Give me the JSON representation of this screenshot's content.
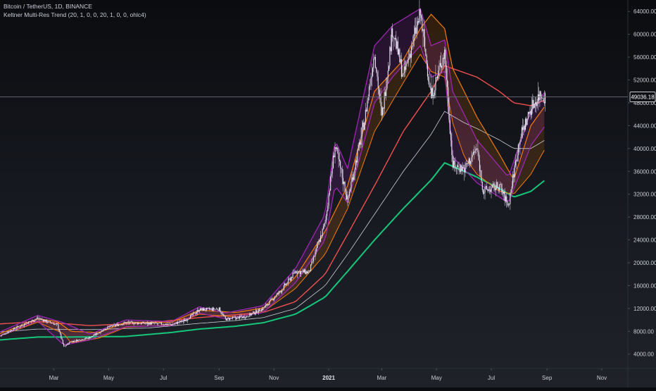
{
  "header": {
    "title": "Bitcoin / TetherUS, 1D, BINANCE",
    "indicator": "Keltner Multi-Res Trend (20, 1, 0, 0, 20, 1, 0, 0, ohlc4)"
  },
  "price_tag": {
    "value": "49036.18",
    "color": "#ffffff"
  },
  "colors": {
    "background": "#131722",
    "candle": "#e8e2f4",
    "inner_band": "#9c27b0",
    "outer_band_orange": "#f57c00",
    "trend_green": "#14c77a",
    "trend_red": "#f04f4f",
    "mid_line": "#cfcfd6",
    "crosshair": "#6b6f78"
  },
  "chart_data": {
    "type": "line",
    "title": "Bitcoin / TetherUS, 1D, BINANCE",
    "xlabel": "",
    "ylabel": "",
    "x_range": [
      "2020-01-01",
      "2021-11-30"
    ],
    "ylim": [
      1500,
      66000
    ],
    "y_scale": "linear",
    "grid": false,
    "legend": "none",
    "yticks": [
      "4000.00",
      "8000.00",
      "12000.00",
      "16000.00",
      "20000.00",
      "24000.00",
      "28000.00",
      "32000.00",
      "36000.00",
      "40000.00",
      "44000.00",
      "48000.00",
      "52000.00",
      "56000.00",
      "60000.00",
      "64000.00"
    ],
    "xticks": [
      {
        "label": "Mar",
        "date": "2020-03-01"
      },
      {
        "label": "May",
        "date": "2020-05-01"
      },
      {
        "label": "Jul",
        "date": "2020-07-01"
      },
      {
        "label": "Sep",
        "date": "2020-09-01"
      },
      {
        "label": "Nov",
        "date": "2020-11-01"
      },
      {
        "label": "2021",
        "date": "2021-01-01",
        "emphasis": true
      },
      {
        "label": "Mar",
        "date": "2021-03-01"
      },
      {
        "label": "May",
        "date": "2021-05-01"
      },
      {
        "label": "Jul",
        "date": "2021-07-01"
      },
      {
        "label": "Sep",
        "date": "2021-09-01"
      },
      {
        "label": "Nov",
        "date": "2021-11-01"
      }
    ],
    "last_price": 49036.18,
    "series": [
      {
        "role": "price-close",
        "points": [
          [
            "2020-01-01",
            7200
          ],
          [
            "2020-01-20",
            8700
          ],
          [
            "2020-02-12",
            10300
          ],
          [
            "2020-03-05",
            9100
          ],
          [
            "2020-03-12",
            5300
          ],
          [
            "2020-03-20",
            6200
          ],
          [
            "2020-04-10",
            6900
          ],
          [
            "2020-04-30",
            8700
          ],
          [
            "2020-05-20",
            9500
          ],
          [
            "2020-06-15",
            9400
          ],
          [
            "2020-07-10",
            9200
          ],
          [
            "2020-07-25",
            9900
          ],
          [
            "2020-08-10",
            11800
          ],
          [
            "2020-09-01",
            11900
          ],
          [
            "2020-09-08",
            10100
          ],
          [
            "2020-10-01",
            10600
          ],
          [
            "2020-10-20",
            12000
          ],
          [
            "2020-11-10",
            15300
          ],
          [
            "2020-11-25",
            18500
          ],
          [
            "2020-12-10",
            18300
          ],
          [
            "2020-12-28",
            27000
          ],
          [
            "2021-01-08",
            40500
          ],
          [
            "2021-01-22",
            31000
          ],
          [
            "2021-02-10",
            45000
          ],
          [
            "2021-02-21",
            57000
          ],
          [
            "2021-03-01",
            45200
          ],
          [
            "2021-03-13",
            61000
          ],
          [
            "2021-03-25",
            52500
          ],
          [
            "2021-04-13",
            63500
          ],
          [
            "2021-04-25",
            49000
          ],
          [
            "2021-05-10",
            57000
          ],
          [
            "2021-05-19",
            37000
          ],
          [
            "2021-06-01",
            36500
          ],
          [
            "2021-06-15",
            40000
          ],
          [
            "2021-06-22",
            32500
          ],
          [
            "2021-07-10",
            33500
          ],
          [
            "2021-07-20",
            30000
          ],
          [
            "2021-08-01",
            41500
          ],
          [
            "2021-08-14",
            47000
          ],
          [
            "2021-08-24",
            49500
          ],
          [
            "2021-08-30",
            49036
          ]
        ]
      },
      {
        "role": "band-inner-upper",
        "points": [
          [
            "2020-01-01",
            7900
          ],
          [
            "2020-02-12",
            10800
          ],
          [
            "2020-03-12",
            9500
          ],
          [
            "2020-04-10",
            7500
          ],
          [
            "2020-05-20",
            10000
          ],
          [
            "2020-07-10",
            9700
          ],
          [
            "2020-08-10",
            12300
          ],
          [
            "2020-09-08",
            11200
          ],
          [
            "2020-10-20",
            12500
          ],
          [
            "2020-11-25",
            19000
          ],
          [
            "2020-12-28",
            28500
          ],
          [
            "2021-01-08",
            41500
          ],
          [
            "2021-01-22",
            36500
          ],
          [
            "2021-02-21",
            58000
          ],
          [
            "2021-03-13",
            61500
          ],
          [
            "2021-04-13",
            64500
          ],
          [
            "2021-04-25",
            58000
          ],
          [
            "2021-05-10",
            59000
          ],
          [
            "2021-05-19",
            50000
          ],
          [
            "2021-06-15",
            41500
          ],
          [
            "2021-07-20",
            35000
          ],
          [
            "2021-08-14",
            46500
          ],
          [
            "2021-08-30",
            50000
          ]
        ]
      },
      {
        "role": "band-inner-lower",
        "points": [
          [
            "2020-01-01",
            7200
          ],
          [
            "2020-02-12",
            9800
          ],
          [
            "2020-03-12",
            5600
          ],
          [
            "2020-04-10",
            6500
          ],
          [
            "2020-05-20",
            8800
          ],
          [
            "2020-07-10",
            9000
          ],
          [
            "2020-08-10",
            11200
          ],
          [
            "2020-09-08",
            10200
          ],
          [
            "2020-10-20",
            11300
          ],
          [
            "2020-11-25",
            16500
          ],
          [
            "2020-12-28",
            24000
          ],
          [
            "2021-01-08",
            33500
          ],
          [
            "2021-01-22",
            30500
          ],
          [
            "2021-02-21",
            48000
          ],
          [
            "2021-03-13",
            52500
          ],
          [
            "2021-04-13",
            58000
          ],
          [
            "2021-04-25",
            52500
          ],
          [
            "2021-05-10",
            53500
          ],
          [
            "2021-05-19",
            38500
          ],
          [
            "2021-06-15",
            34000
          ],
          [
            "2021-07-20",
            30500
          ],
          [
            "2021-08-14",
            40500
          ],
          [
            "2021-08-30",
            44000
          ]
        ]
      },
      {
        "role": "band-outer-upper",
        "points": [
          [
            "2020-01-01",
            7600
          ],
          [
            "2020-02-12",
            10200
          ],
          [
            "2020-03-05",
            9700
          ],
          [
            "2020-03-20",
            8000
          ],
          [
            "2020-04-20",
            7800
          ],
          [
            "2020-05-20",
            9600
          ],
          [
            "2020-07-10",
            9600
          ],
          [
            "2020-08-10",
            11700
          ],
          [
            "2020-09-20",
            11300
          ],
          [
            "2020-10-20",
            12100
          ],
          [
            "2020-11-25",
            17500
          ],
          [
            "2020-12-28",
            25500
          ],
          [
            "2021-01-22",
            33500
          ],
          [
            "2021-02-21",
            50000
          ],
          [
            "2021-03-25",
            55500
          ],
          [
            "2021-04-13",
            61000
          ],
          [
            "2021-04-25",
            63500
          ],
          [
            "2021-05-10",
            61000
          ],
          [
            "2021-05-19",
            54000
          ],
          [
            "2021-06-15",
            45500
          ],
          [
            "2021-07-10",
            39000
          ],
          [
            "2021-07-26",
            34500
          ],
          [
            "2021-08-14",
            44000
          ],
          [
            "2021-08-30",
            47500
          ]
        ]
      },
      {
        "role": "band-outer-lower",
        "points": [
          [
            "2020-01-01",
            7200
          ],
          [
            "2020-02-12",
            9600
          ],
          [
            "2020-03-12",
            7600
          ],
          [
            "2020-03-20",
            6000
          ],
          [
            "2020-04-20",
            6800
          ],
          [
            "2020-05-20",
            8700
          ],
          [
            "2020-07-10",
            9100
          ],
          [
            "2020-08-10",
            11000
          ],
          [
            "2020-09-20",
            10500
          ],
          [
            "2020-10-20",
            11400
          ],
          [
            "2020-11-25",
            15500
          ],
          [
            "2020-12-28",
            21500
          ],
          [
            "2021-01-22",
            29500
          ],
          [
            "2021-02-21",
            43000
          ],
          [
            "2021-03-25",
            51500
          ],
          [
            "2021-04-13",
            56500
          ],
          [
            "2021-04-25",
            53500
          ],
          [
            "2021-05-10",
            52500
          ],
          [
            "2021-05-19",
            44500
          ],
          [
            "2021-06-01",
            38500
          ],
          [
            "2021-06-15",
            35500
          ],
          [
            "2021-07-10",
            32500
          ],
          [
            "2021-07-26",
            32000
          ],
          [
            "2021-08-14",
            35500
          ],
          [
            "2021-08-30",
            40000
          ]
        ]
      },
      {
        "role": "trend-long-upper",
        "points": [
          [
            "2020-01-01",
            9300
          ],
          [
            "2020-02-12",
            9700
          ],
          [
            "2020-04-10",
            9000
          ],
          [
            "2020-06-15",
            9500
          ],
          [
            "2020-08-10",
            10400
          ],
          [
            "2020-09-20",
            10900
          ],
          [
            "2020-10-20",
            11300
          ],
          [
            "2020-11-25",
            13200
          ],
          [
            "2020-12-28",
            18000
          ],
          [
            "2021-01-22",
            25000
          ],
          [
            "2021-02-21",
            33500
          ],
          [
            "2021-03-25",
            43000
          ],
          [
            "2021-04-25",
            50000
          ],
          [
            "2021-05-10",
            54500
          ],
          [
            "2021-06-15",
            52500
          ],
          [
            "2021-07-10",
            50000
          ],
          [
            "2021-07-26",
            48000
          ],
          [
            "2021-08-14",
            47500
          ],
          [
            "2021-08-30",
            48500
          ]
        ]
      },
      {
        "role": "trend-long-lower",
        "points": [
          [
            "2020-01-01",
            6500
          ],
          [
            "2020-02-12",
            7000
          ],
          [
            "2020-03-20",
            7000
          ],
          [
            "2020-05-20",
            7100
          ],
          [
            "2020-07-10",
            7800
          ],
          [
            "2020-08-10",
            8400
          ],
          [
            "2020-09-20",
            8900
          ],
          [
            "2020-10-20",
            9500
          ],
          [
            "2020-11-25",
            11000
          ],
          [
            "2020-12-28",
            14000
          ],
          [
            "2021-01-22",
            18500
          ],
          [
            "2021-02-21",
            24000
          ],
          [
            "2021-03-25",
            29500
          ],
          [
            "2021-04-25",
            34500
          ],
          [
            "2021-05-10",
            37500
          ],
          [
            "2021-06-01",
            36000
          ],
          [
            "2021-06-15",
            35000
          ],
          [
            "2021-07-10",
            33000
          ],
          [
            "2021-07-26",
            31500
          ],
          [
            "2021-08-14",
            32500
          ],
          [
            "2021-08-30",
            34500
          ]
        ]
      },
      {
        "role": "trend-mid",
        "points": [
          [
            "2020-01-01",
            7900
          ],
          [
            "2020-02-12",
            8400
          ],
          [
            "2020-04-10",
            8300
          ],
          [
            "2020-06-15",
            8600
          ],
          [
            "2020-08-10",
            9400
          ],
          [
            "2020-09-20",
            9900
          ],
          [
            "2020-10-20",
            10400
          ],
          [
            "2020-11-25",
            12000
          ],
          [
            "2020-12-28",
            16000
          ],
          [
            "2021-01-22",
            21500
          ],
          [
            "2021-02-21",
            28500
          ],
          [
            "2021-03-25",
            36000
          ],
          [
            "2021-04-25",
            42500
          ],
          [
            "2021-05-10",
            46500
          ],
          [
            "2021-06-01",
            44500
          ],
          [
            "2021-06-15",
            43500
          ],
          [
            "2021-07-10",
            41500
          ],
          [
            "2021-07-26",
            40000
          ],
          [
            "2021-08-14",
            40000
          ],
          [
            "2021-08-30",
            41500
          ]
        ]
      }
    ]
  }
}
